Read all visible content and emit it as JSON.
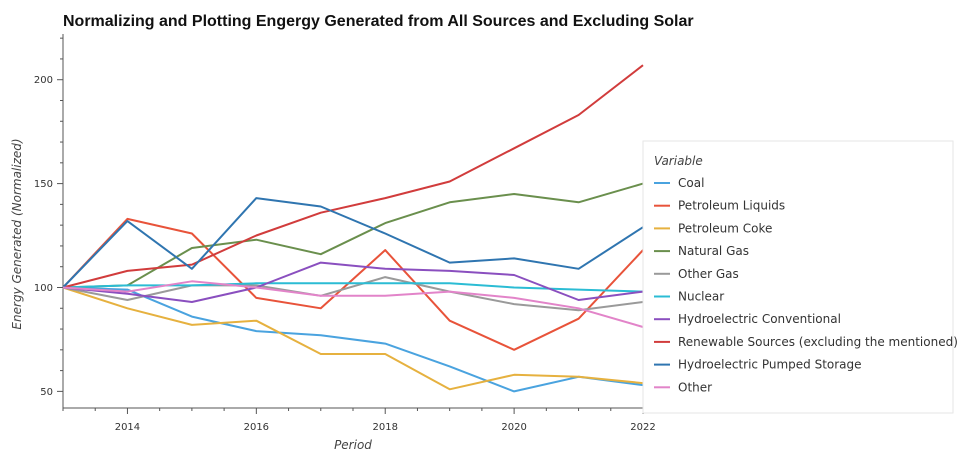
{
  "chart_data": {
    "type": "line",
    "title": "Normalizing and Plotting Engergy Generated from All Sources and Excluding Solar",
    "xlabel": "Period",
    "ylabel": "Energy Generated (Normalized)",
    "legend_title": "Variable",
    "legend_position": "right",
    "grid": false,
    "xlim": [
      2013,
      2022
    ],
    "ylim": [
      42,
      222
    ],
    "x_ticks": [
      2014,
      2016,
      2018,
      2020,
      2022
    ],
    "y_ticks": [
      50,
      100,
      150,
      200
    ],
    "x": [
      2013,
      2014,
      2015,
      2016,
      2017,
      2018,
      2019,
      2020,
      2021,
      2022
    ],
    "series": [
      {
        "name": "Coal",
        "color": "#4aa3df",
        "values": [
          100,
          99,
          86,
          79,
          77,
          73,
          62,
          50,
          57,
          53
        ]
      },
      {
        "name": "Petroleum Liquids",
        "color": "#e8533a",
        "values": [
          100,
          133,
          126,
          95,
          90,
          118,
          84,
          70,
          85,
          118
        ]
      },
      {
        "name": "Petroleum Coke",
        "color": "#e6b13f",
        "values": [
          100,
          90,
          82,
          84,
          68,
          68,
          51,
          58,
          57,
          54
        ]
      },
      {
        "name": "Natural Gas",
        "color": "#6a8f4d",
        "values": [
          100,
          101,
          119,
          123,
          116,
          131,
          141,
          145,
          141,
          150
        ]
      },
      {
        "name": "Other Gas",
        "color": "#9a9a9a",
        "values": [
          100,
          94,
          101,
          101,
          96,
          105,
          98,
          92,
          89,
          93
        ]
      },
      {
        "name": "Nuclear",
        "color": "#2bbcd4",
        "values": [
          100,
          101,
          101,
          102,
          102,
          102,
          102,
          100,
          99,
          98
        ]
      },
      {
        "name": "Hydroelectric Conventional",
        "color": "#8a4fbf",
        "values": [
          100,
          97,
          93,
          100,
          112,
          109,
          108,
          106,
          94,
          98
        ]
      },
      {
        "name": "Renewable Sources (excluding the mentioned)",
        "color": "#d13c3c",
        "values": [
          100,
          108,
          111,
          125,
          136,
          143,
          151,
          167,
          183,
          207
        ]
      },
      {
        "name": "Hydroelectric Pumped Storage",
        "color": "#2f75b0",
        "values": [
          100,
          132,
          109,
          143,
          139,
          126,
          112,
          114,
          109,
          129
        ]
      },
      {
        "name": "Other",
        "color": "#e284c9",
        "values": [
          100,
          98,
          103,
          100,
          96,
          96,
          98,
          95,
          90,
          81
        ]
      }
    ]
  }
}
